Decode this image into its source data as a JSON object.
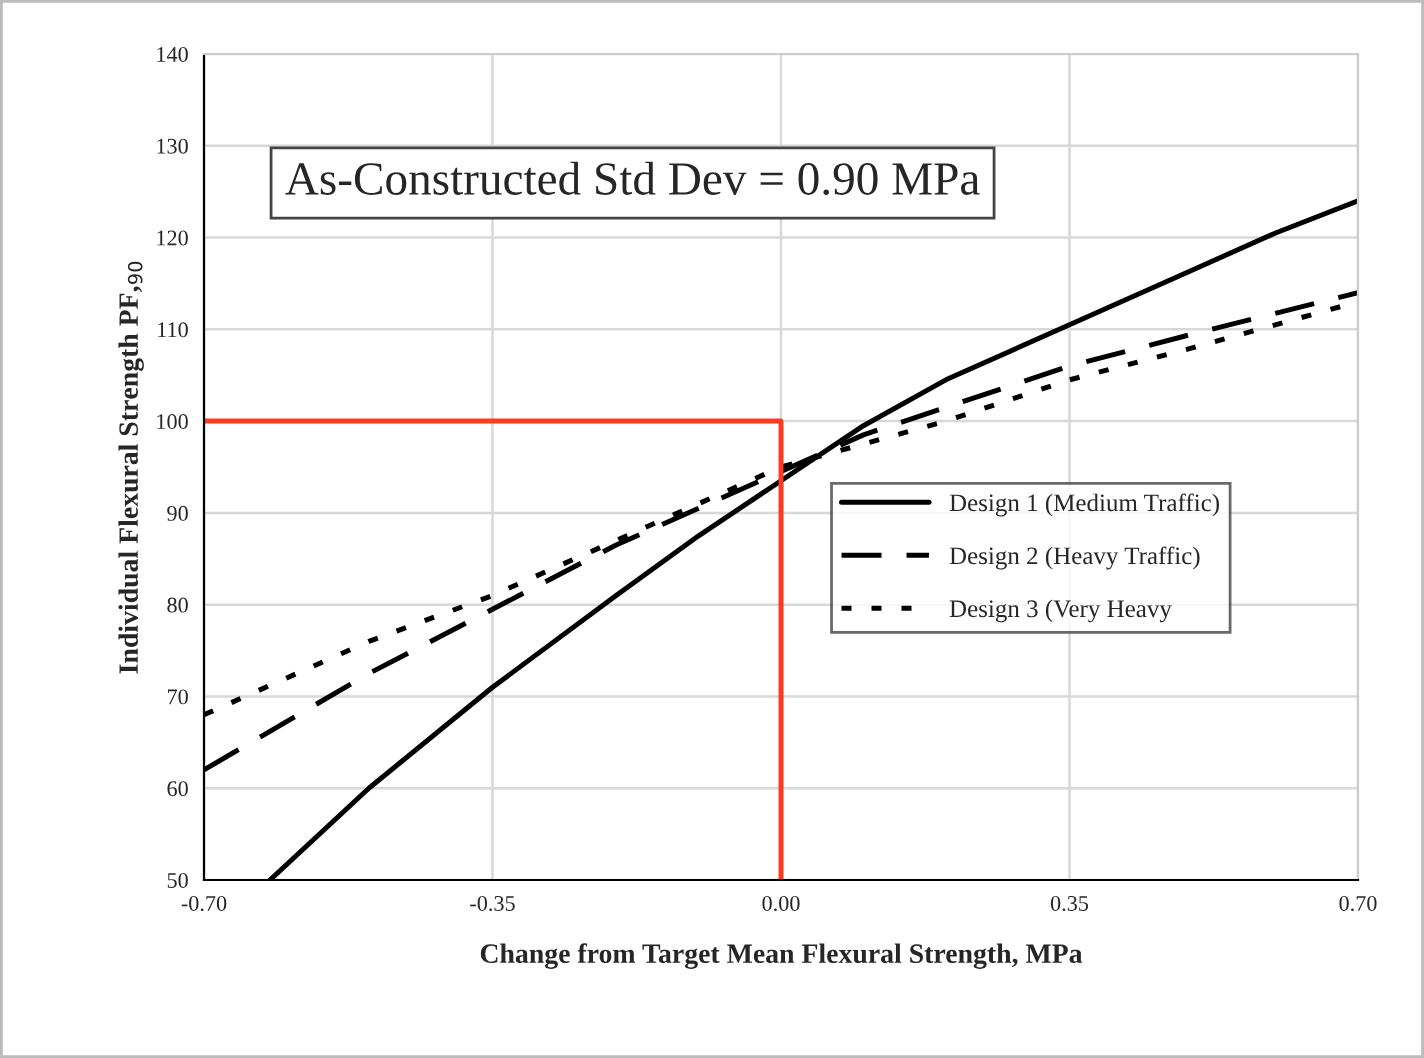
{
  "chart_data": {
    "type": "line",
    "xlabel": "Change from Target Mean Flexural Strength, MPa",
    "ylabel": "Individual Flexural Strength PF,$_{90}$",
    "annotations": [
      "As-Constructed Std Dev = 0.90 MPa"
    ],
    "xlim": [
      -0.7,
      0.7
    ],
    "xticks": [
      {
        "value": -0.7,
        "label": "-0.70"
      },
      {
        "value": -0.35,
        "label": "-0.35"
      },
      {
        "value": 0,
        "label": "0.00"
      },
      {
        "value": 0.35,
        "label": "0.35"
      },
      {
        "value": 0.7,
        "label": "0.70"
      }
    ],
    "ylim": [
      50,
      140
    ],
    "yticks": [
      50,
      60,
      70,
      80,
      90,
      100,
      110,
      120,
      130,
      140
    ],
    "grid": true,
    "legend": "right",
    "marker": "none",
    "series": [
      {
        "name": "Design 1 (Medium Traffic)",
        "color": "#000000",
        "line_style": "solid",
        "x": [
          -0.62,
          -0.5,
          -0.35,
          -0.2,
          -0.1,
          0,
          0.1,
          0.2,
          0.35,
          0.5,
          0.6,
          0.7
        ],
        "values": [
          50,
          60,
          71,
          81,
          87.5,
          93.5,
          99.5,
          104.5,
          110.5,
          116.5,
          120.5,
          124
        ]
      },
      {
        "name": "Design 2 (Heavy Traffic)",
        "color": "#000000",
        "line_style": "dashed",
        "x": [
          -0.7,
          -0.5,
          -0.35,
          -0.2,
          0,
          0.1,
          0.2,
          0.35,
          0.5,
          0.7
        ],
        "values": [
          62,
          72.5,
          79.5,
          86.5,
          94.5,
          98.5,
          101.5,
          106,
          109.5,
          114
        ]
      },
      {
        "name": "Design 3 (Very Heavy",
        "color": "#000000",
        "line_style": "dotted",
        "x": [
          -0.7,
          -0.5,
          -0.35,
          -0.2,
          0,
          0.1,
          0.2,
          0.35,
          0.5,
          0.7
        ],
        "values": [
          68,
          76,
          81,
          87,
          95,
          97.5,
          100,
          104.5,
          108,
          113
        ]
      },
      {
        "color": "#ff3b1f",
        "line_style": "solid",
        "x": [
          -0.7,
          0,
          0
        ],
        "values": [
          100,
          100,
          50
        ]
      }
    ]
  }
}
